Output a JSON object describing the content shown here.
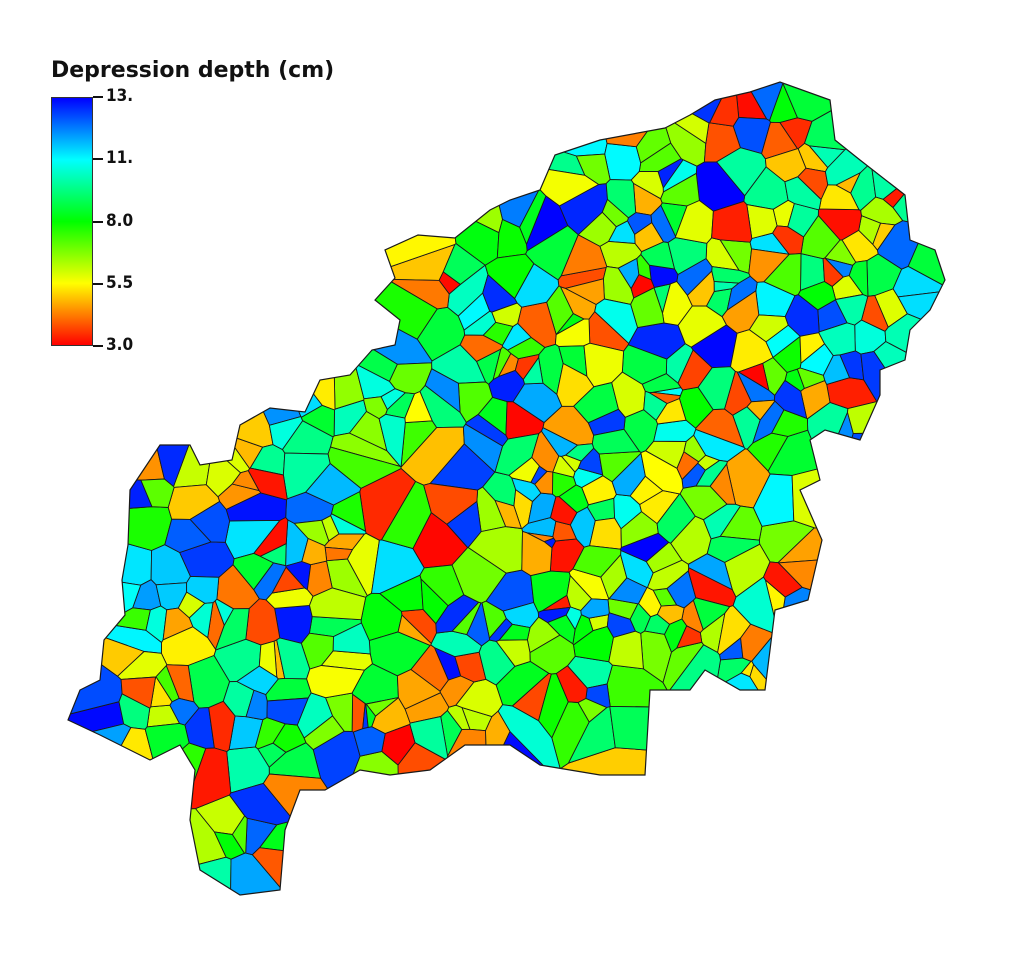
{
  "legend": {
    "title": "Depression depth (cm)",
    "ticks": [
      {
        "label": "13.",
        "value": 13
      },
      {
        "label": "11.",
        "value": 10.5
      },
      {
        "label": "8.0",
        "value": 8.0
      },
      {
        "label": "5.5",
        "value": 5.5
      },
      {
        "label": "3.0",
        "value": 3.0
      }
    ],
    "min": 3.0,
    "max": 13.0,
    "colormap": [
      "#ff0000",
      "#ffff00",
      "#00ff00",
      "#00ffff",
      "#0000ff"
    ]
  },
  "map": {
    "cell_outline_color": "#1a1a1a",
    "background": "#ffffff"
  }
}
